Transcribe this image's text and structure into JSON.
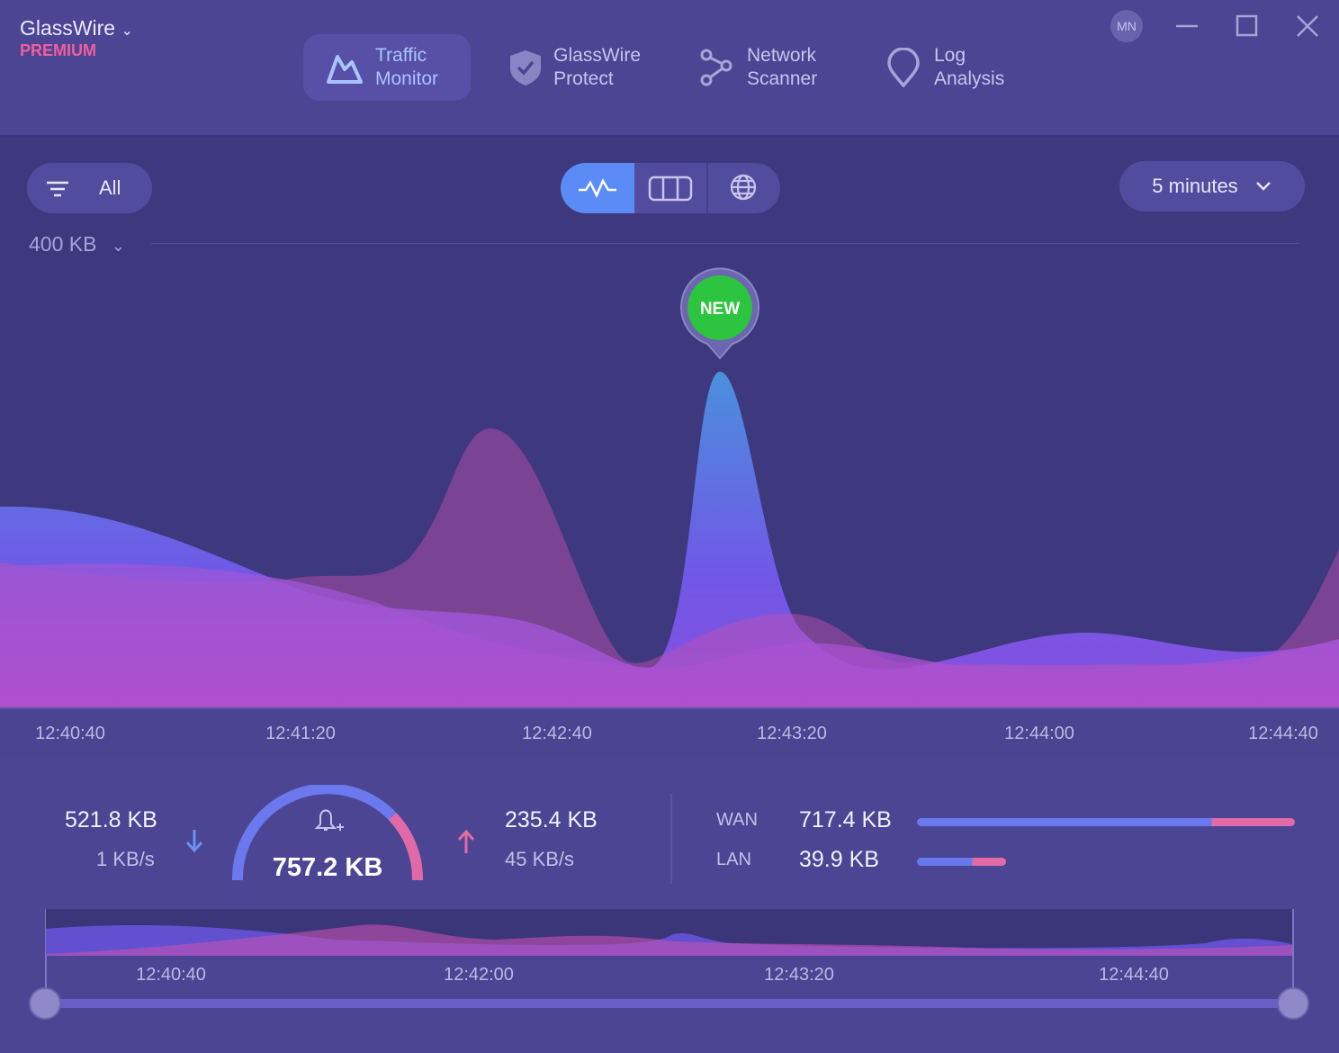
{
  "header": {
    "app_name": "GlassWire",
    "plan": "PREMIUM",
    "user_initials": "MN",
    "tabs": [
      {
        "lines": [
          "Traffic",
          "Monitor"
        ]
      },
      {
        "lines": [
          "GlassWire",
          "Protect"
        ]
      },
      {
        "lines": [
          "Network",
          "Scanner"
        ]
      },
      {
        "lines": [
          "Log",
          "Analysis"
        ]
      }
    ]
  },
  "toolbar": {
    "filter": "All",
    "time_range": "5 minutes"
  },
  "graph": {
    "scale_label": "400 KB",
    "marker": "NEW",
    "time_labels": [
      "12:40:40",
      "12:41:20",
      "12:42:40",
      "12:43:20",
      "12:44:00",
      "12:44:40"
    ]
  },
  "summary": {
    "download_total": "521.8 KB",
    "download_rate": "1 KB/s",
    "total": "757.2 KB",
    "upload_total": "235.4 KB",
    "upload_rate": "45 KB/s",
    "wan_label": "WAN",
    "wan_value": "717.4 KB",
    "lan_label": "LAN",
    "lan_value": "39.9 KB"
  },
  "timeline": {
    "time_labels": [
      "12:40:40",
      "12:42:00",
      "12:43:20",
      "12:44:40"
    ]
  }
}
